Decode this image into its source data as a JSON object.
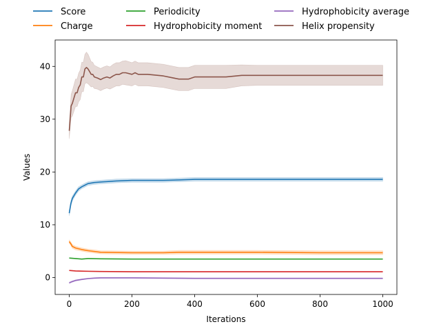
{
  "chart_data": {
    "type": "line",
    "title": "",
    "xlabel": "Iterations",
    "ylabel": "Values",
    "xlim": [
      -45,
      1045
    ],
    "ylim": [
      -3.2,
      45
    ],
    "xticks": [
      "0",
      "200",
      "400",
      "600",
      "800",
      "1000"
    ],
    "yticks": [
      "0",
      "10",
      "20",
      "30",
      "40"
    ],
    "grid": false,
    "legend": {
      "placement": "top-outside",
      "columns": 3
    },
    "series": [
      {
        "name": "Score",
        "color": "#1f77b4",
        "x": [
          0,
          5,
          10,
          20,
          30,
          40,
          50,
          60,
          80,
          100,
          150,
          200,
          300,
          350,
          400,
          600,
          800,
          1000
        ],
        "y": [
          12.2,
          14.0,
          15.0,
          16.0,
          16.8,
          17.2,
          17.5,
          17.8,
          18.0,
          18.1,
          18.3,
          18.4,
          18.4,
          18.5,
          18.6,
          18.6,
          18.6,
          18.6
        ],
        "band": [
          0.5,
          0.5,
          0.45,
          0.4,
          0.4,
          0.35,
          0.35,
          0.35,
          0.35,
          0.35,
          0.35,
          0.35,
          0.35,
          0.35,
          0.35,
          0.35,
          0.35,
          0.35
        ]
      },
      {
        "name": "Charge",
        "color": "#ff7f0e",
        "x": [
          0,
          5,
          10,
          20,
          40,
          60,
          100,
          200,
          300,
          350,
          400,
          600,
          800,
          1000
        ],
        "y": [
          6.8,
          6.4,
          5.9,
          5.6,
          5.3,
          5.1,
          4.8,
          4.7,
          4.7,
          4.8,
          4.8,
          4.8,
          4.7,
          4.7
        ],
        "band": [
          0.3,
          0.3,
          0.35,
          0.35,
          0.3,
          0.3,
          0.3,
          0.3,
          0.3,
          0.35,
          0.35,
          0.35,
          0.35,
          0.35
        ]
      },
      {
        "name": "Periodicity",
        "color": "#2ca02c",
        "x": [
          0,
          20,
          40,
          60,
          100,
          200,
          400,
          600,
          800,
          1000
        ],
        "y": [
          3.7,
          3.6,
          3.5,
          3.6,
          3.55,
          3.5,
          3.5,
          3.5,
          3.5,
          3.5
        ],
        "band": [
          0.05,
          0.05,
          0.05,
          0.05,
          0.05,
          0.05,
          0.05,
          0.05,
          0.05,
          0.05
        ]
      },
      {
        "name": "Hydrophobicity moment",
        "color": "#d62728",
        "x": [
          0,
          20,
          50,
          100,
          200,
          400,
          600,
          800,
          1000
        ],
        "y": [
          1.35,
          1.25,
          1.2,
          1.15,
          1.1,
          1.1,
          1.1,
          1.1,
          1.1
        ],
        "band": [
          0.05,
          0.05,
          0.05,
          0.05,
          0.05,
          0.05,
          0.05,
          0.05,
          0.05
        ]
      },
      {
        "name": "Hydrophobicity average",
        "color": "#9467bd",
        "x": [
          0,
          10,
          20,
          40,
          60,
          80,
          100,
          150,
          200,
          300,
          400,
          600,
          800,
          1000
        ],
        "y": [
          -1.0,
          -0.75,
          -0.55,
          -0.35,
          -0.2,
          -0.1,
          -0.05,
          -0.05,
          -0.05,
          -0.1,
          -0.15,
          -0.15,
          -0.15,
          -0.15
        ],
        "band": [
          0.15,
          0.15,
          0.12,
          0.1,
          0.08,
          0.08,
          0.08,
          0.08,
          0.08,
          0.08,
          0.08,
          0.08,
          0.08,
          0.08
        ]
      },
      {
        "name": "Helix propensity",
        "color": "#8c564b",
        "x": [
          0,
          3,
          6,
          10,
          15,
          20,
          25,
          30,
          35,
          40,
          45,
          50,
          55,
          60,
          65,
          70,
          75,
          80,
          90,
          100,
          110,
          120,
          130,
          140,
          150,
          160,
          170,
          180,
          200,
          210,
          220,
          250,
          300,
          350,
          380,
          400,
          450,
          500,
          550,
          600,
          700,
          800,
          900,
          1000
        ],
        "y": [
          27.8,
          30.0,
          32.5,
          33.0,
          34.0,
          35.0,
          35.0,
          36.0,
          36.5,
          38.0,
          38.0,
          39.5,
          39.8,
          39.5,
          39.0,
          38.5,
          38.5,
          38.0,
          37.8,
          37.5,
          37.8,
          38.0,
          37.8,
          38.2,
          38.5,
          38.5,
          38.8,
          38.8,
          38.5,
          38.8,
          38.5,
          38.5,
          38.2,
          37.6,
          37.6,
          38.0,
          38.0,
          38.0,
          38.3,
          38.3,
          38.3,
          38.3,
          38.3,
          38.3
        ],
        "band": [
          1.5,
          1.8,
          2.2,
          2.4,
          2.5,
          2.6,
          2.6,
          2.7,
          2.8,
          2.8,
          2.8,
          2.8,
          2.9,
          2.8,
          2.6,
          2.4,
          2.3,
          2.2,
          2.1,
          2.1,
          2.1,
          2.1,
          2.1,
          2.2,
          2.2,
          2.2,
          2.2,
          2.3,
          2.2,
          2.2,
          2.2,
          2.2,
          2.2,
          2.2,
          2.2,
          2.2,
          2.2,
          2.2,
          2.0,
          1.9,
          1.9,
          1.9,
          1.9,
          1.9
        ]
      }
    ]
  }
}
